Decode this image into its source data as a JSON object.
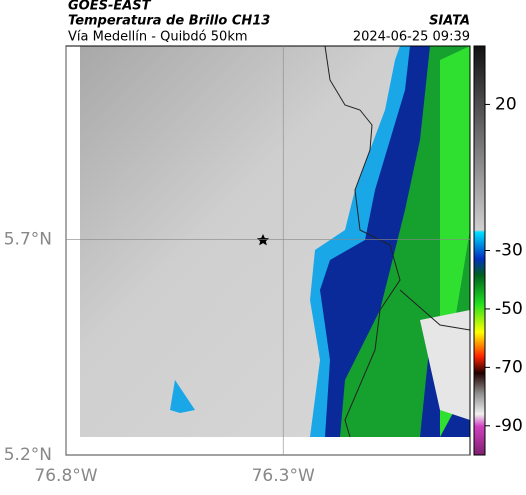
{
  "header": {
    "satellite": "GOES-EAST",
    "title": "Temperatura de Brillo CH13",
    "source": "SIATA",
    "region": "Vía Medellín - Quibdó 50km",
    "datetime": "2024-06-25 09:39"
  },
  "map": {
    "xlim": [
      -76.8,
      -75.87
    ],
    "ylim": [
      5.2,
      6.15
    ],
    "xticks": [
      {
        "value": -76.8,
        "label": "76.8°W"
      },
      {
        "value": -76.3,
        "label": "76.3°W"
      }
    ],
    "yticks": [
      {
        "value": 5.2,
        "label": "5.2°N"
      },
      {
        "value": 5.7,
        "label": "5.7°N"
      }
    ],
    "grid": true
  },
  "colorbar": {
    "lim": [
      40,
      -100
    ],
    "ticks": [
      20,
      -30,
      -50,
      -70,
      -90
    ]
  }
}
